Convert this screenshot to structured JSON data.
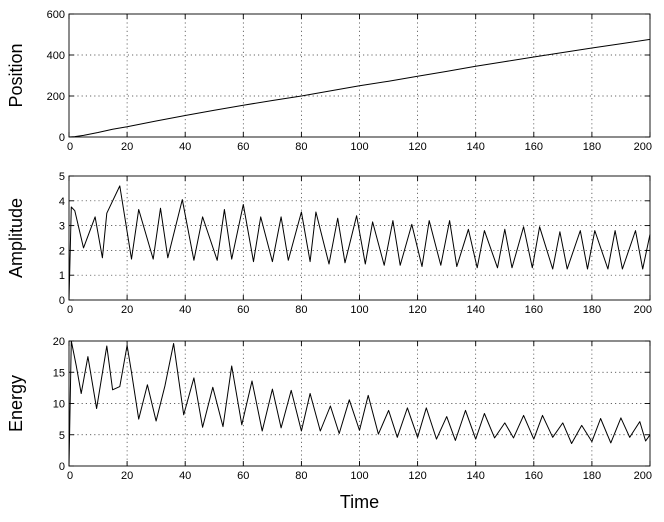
{
  "chart_data": [
    {
      "type": "line",
      "title": "",
      "xlabel": "",
      "ylabel": "Position",
      "xlim": [
        0,
        200
      ],
      "ylim": [
        0,
        600
      ],
      "xticks": [
        0,
        20,
        40,
        60,
        80,
        100,
        120,
        140,
        160,
        180,
        200
      ],
      "yticks": [
        0,
        200,
        400,
        600
      ],
      "grid": true,
      "series": [
        {
          "x": [
            0,
            2,
            5,
            10,
            15,
            17.5,
            20,
            30,
            40,
            50,
            60,
            70,
            80,
            90,
            100,
            110,
            120,
            130,
            140,
            150,
            160,
            170,
            180,
            190,
            200
          ],
          "y": [
            0,
            2,
            8,
            22,
            38,
            44,
            50,
            78,
            105,
            130,
            155,
            178,
            200,
            225,
            250,
            272,
            296,
            320,
            345,
            368,
            390,
            412,
            434,
            455,
            476
          ]
        }
      ]
    },
    {
      "type": "line",
      "title": "",
      "xlabel": "",
      "ylabel": "Amplitude",
      "xlim": [
        0,
        200
      ],
      "ylim": [
        0,
        5
      ],
      "xticks": [
        0,
        20,
        40,
        60,
        80,
        100,
        120,
        140,
        160,
        180,
        200
      ],
      "yticks": [
        0,
        1,
        2,
        3,
        4,
        5
      ],
      "grid": true,
      "series": [
        {
          "x": [
            0,
            0.8,
            2,
            5,
            9,
            11.5,
            13,
            17.5,
            21.5,
            24,
            29,
            31.5,
            34,
            39,
            43,
            46,
            51,
            53.5,
            56,
            60,
            63.5,
            66,
            70,
            73,
            75.5,
            80,
            83,
            85,
            89.5,
            92.5,
            95,
            99,
            102,
            104.5,
            108.5,
            111.5,
            114,
            118,
            121.5,
            124,
            128,
            131,
            133.5,
            137.5,
            140.5,
            143,
            147.5,
            150,
            152.5,
            156.5,
            159.5,
            162,
            166.5,
            169,
            171.5,
            176,
            178.5,
            181,
            185.5,
            188,
            190.5,
            195,
            197.5,
            200
          ],
          "y": [
            0,
            3.75,
            3.6,
            2.1,
            3.35,
            1.7,
            3.5,
            4.6,
            1.65,
            3.65,
            1.65,
            3.7,
            1.7,
            4.05,
            1.6,
            3.35,
            1.6,
            3.65,
            1.65,
            3.85,
            1.55,
            3.35,
            1.55,
            3.35,
            1.6,
            3.55,
            1.55,
            3.55,
            1.45,
            3.3,
            1.5,
            3.4,
            1.45,
            3.15,
            1.4,
            3.2,
            1.4,
            3.05,
            1.35,
            3.2,
            1.4,
            3.2,
            1.35,
            2.85,
            1.3,
            2.8,
            1.3,
            2.85,
            1.3,
            2.95,
            1.3,
            2.95,
            1.25,
            2.75,
            1.25,
            2.8,
            1.25,
            2.8,
            1.25,
            2.8,
            1.25,
            2.8,
            1.25,
            2.65
          ]
        }
      ]
    },
    {
      "type": "line",
      "title": "",
      "xlabel": "Time",
      "ylabel": "Energy",
      "xlim": [
        0,
        200
      ],
      "ylim": [
        0,
        20
      ],
      "xticks": [
        0,
        20,
        40,
        60,
        80,
        100,
        120,
        140,
        160,
        180,
        200
      ],
      "yticks": [
        0,
        5,
        10,
        15,
        20
      ],
      "grid": true,
      "series": [
        {
          "x": [
            0,
            0.8,
            2.5,
            4.2,
            6.5,
            9.5,
            13,
            15,
            17.5,
            20,
            21.5,
            24,
            27,
            30,
            33,
            36,
            39.5,
            43,
            46,
            49.5,
            53,
            56,
            59.5,
            63,
            66.5,
            70,
            73,
            76.5,
            80,
            83,
            86.5,
            90,
            93,
            96.5,
            100,
            103,
            106.5,
            110,
            113,
            116.5,
            120,
            123,
            126.5,
            130,
            133,
            136.5,
            140,
            143,
            146.5,
            150,
            153,
            156.5,
            160,
            163,
            166.5,
            170,
            173,
            176.5,
            180,
            183,
            186.5,
            190,
            193,
            196.5,
            198.5,
            200
          ],
          "y": [
            0,
            20,
            16,
            11.6,
            17.5,
            9.2,
            19.2,
            12.2,
            12.7,
            19.3,
            15,
            7.5,
            13,
            7.2,
            12.8,
            19.6,
            8.2,
            14.1,
            6.2,
            12.6,
            6.3,
            16,
            6.6,
            13.6,
            5.6,
            12.3,
            6.1,
            12.1,
            5.6,
            11.6,
            5.6,
            9.6,
            5.2,
            10.6,
            5.7,
            11.3,
            5.1,
            8.9,
            4.6,
            9.3,
            4.6,
            9.3,
            4.3,
            7.9,
            4.1,
            8.9,
            4.3,
            8.4,
            4.5,
            6.9,
            4.5,
            8.1,
            4.3,
            8.1,
            4.6,
            6.9,
            3.6,
            6.5,
            3.9,
            7.6,
            3.7,
            7.7,
            4.6,
            7.1,
            4.0,
            5.0
          ]
        }
      ]
    }
  ]
}
